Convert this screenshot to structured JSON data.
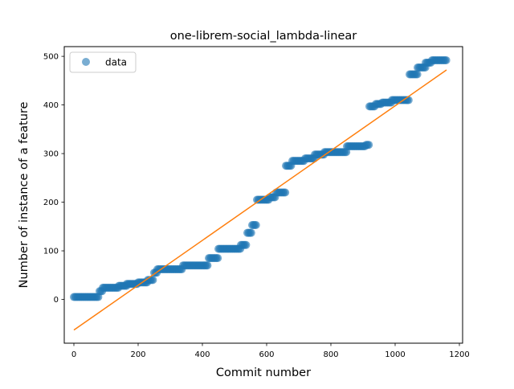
{
  "chart_data": {
    "type": "scatter",
    "title": "one-librem-social_lambda-linear",
    "xlabel": "Commit number",
    "ylabel": "Number of instance of a feature",
    "xlim": [
      -30,
      1210
    ],
    "ylim": [
      -90,
      520
    ],
    "xticks": [
      0,
      200,
      400,
      600,
      800,
      1000,
      1200
    ],
    "yticks": [
      0,
      100,
      200,
      300,
      400,
      500
    ],
    "legend": {
      "position": "top-left",
      "entries": [
        "data"
      ]
    },
    "grid": false,
    "colors": {
      "data": "#1f77b4",
      "fit": "#ff7f0e"
    },
    "series": [
      {
        "name": "data",
        "style": "markers",
        "steps": [
          [
            0,
            80,
            5
          ],
          [
            80,
            90,
            17
          ],
          [
            90,
            140,
            24
          ],
          [
            140,
            165,
            28
          ],
          [
            165,
            200,
            32
          ],
          [
            200,
            230,
            35
          ],
          [
            230,
            250,
            40
          ],
          [
            250,
            260,
            55
          ],
          [
            260,
            340,
            62
          ],
          [
            340,
            420,
            70
          ],
          [
            420,
            450,
            85
          ],
          [
            450,
            520,
            104
          ],
          [
            520,
            540,
            112
          ],
          [
            540,
            555,
            137
          ],
          [
            555,
            570,
            153
          ],
          [
            570,
            610,
            205
          ],
          [
            610,
            630,
            210
          ],
          [
            630,
            660,
            220
          ],
          [
            660,
            680,
            275
          ],
          [
            680,
            720,
            285
          ],
          [
            720,
            750,
            290
          ],
          [
            750,
            780,
            298
          ],
          [
            780,
            850,
            303
          ],
          [
            850,
            910,
            315
          ],
          [
            910,
            920,
            318
          ],
          [
            920,
            940,
            397
          ],
          [
            940,
            960,
            402
          ],
          [
            960,
            990,
            405
          ],
          [
            990,
            1045,
            410
          ],
          [
            1045,
            1070,
            463
          ],
          [
            1070,
            1095,
            477
          ],
          [
            1095,
            1115,
            487
          ],
          [
            1115,
            1160,
            492
          ]
        ]
      },
      {
        "name": "",
        "style": "line",
        "x": [
          0,
          1160
        ],
        "y": [
          -63,
          472
        ]
      }
    ]
  }
}
